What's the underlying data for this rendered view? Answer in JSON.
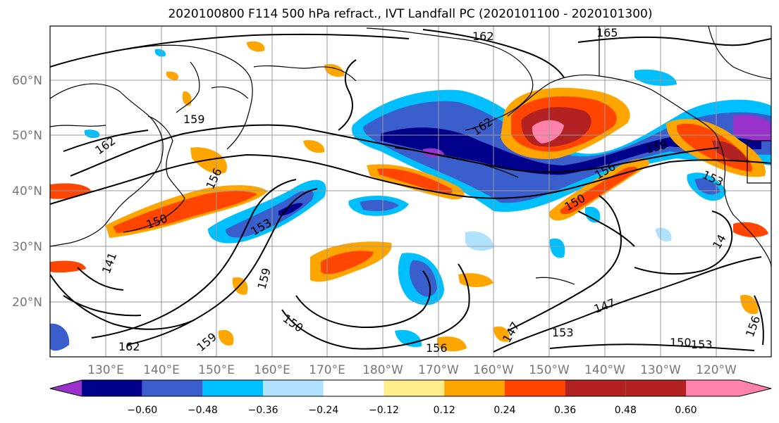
{
  "title": "2020100800 F114 500 hPa refract., IVT Landfall PC (2020101100 - 2020101300)",
  "lat_labels": [
    "60°N",
    "50°N",
    "40°N",
    "30°N",
    "20°N"
  ],
  "lon_labels": [
    "130°E",
    "140°E",
    "150°E",
    "160°E",
    "170°E",
    "180°W",
    "170°W",
    "160°W",
    "150°W",
    "140°W",
    "130°W",
    "120°W"
  ],
  "contour_labels": [
    "162",
    "165",
    "159",
    "162",
    "162",
    "156",
    "159",
    "156",
    "150",
    "153",
    "150",
    "141",
    "159",
    "150",
    "162",
    "159",
    "147",
    "147",
    "153",
    "156",
    "150",
    "153",
    "156",
    "153",
    "14"
  ],
  "colorbar": {
    "colors": [
      "#9932CC",
      "#00008B",
      "#3A5FCD",
      "#00BFFF",
      "#B0E2FF",
      "#FFFFFF",
      "#FFEC8B",
      "#FFA500",
      "#FF4500",
      "#B22222",
      "#FF82AB"
    ],
    "tick_labels": [
      "−0.60",
      "−0.48",
      "−0.36",
      "−0.24",
      "−0.12",
      "0.12",
      "0.24",
      "0.36",
      "0.48",
      "0.60"
    ]
  }
}
